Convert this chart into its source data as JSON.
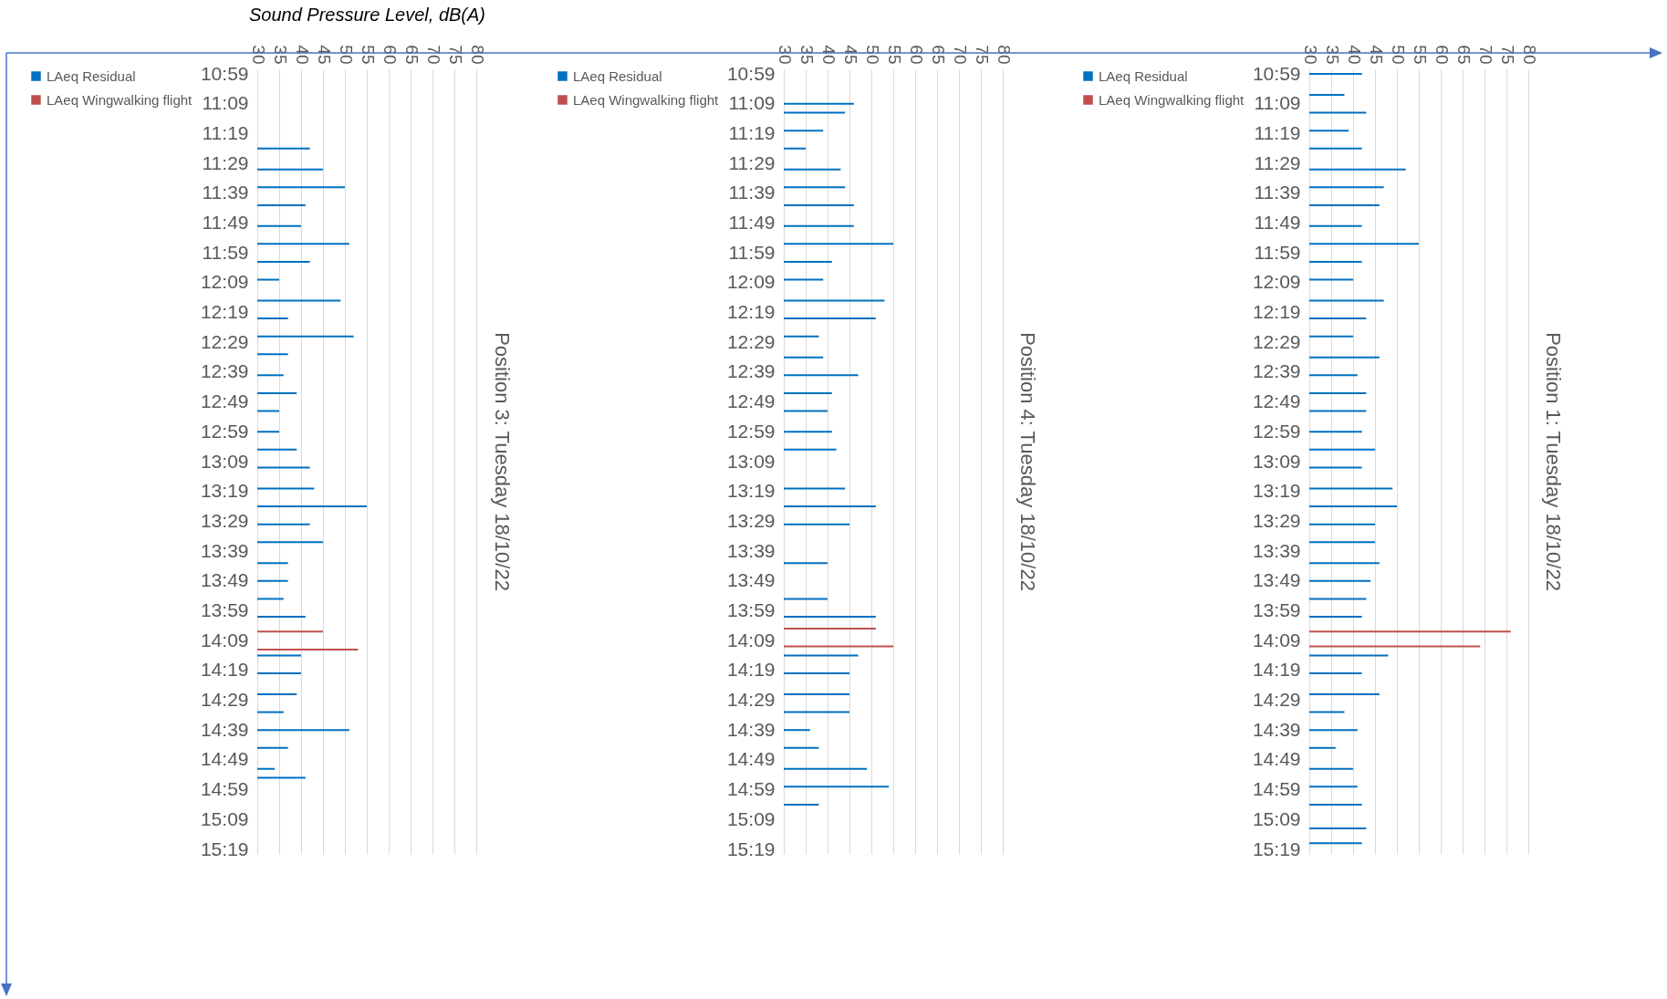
{
  "chart_data": [
    {
      "type": "bar",
      "orientation": "horizontal",
      "title": "Position 3: Tuesday 18/10/22",
      "xlabel": "Sound Pressure Level, dB(A)",
      "xlim": [
        30,
        80
      ],
      "xticks": [
        30,
        35,
        40,
        45,
        50,
        55,
        60,
        65,
        70,
        75,
        80
      ],
      "ylim": [
        15.317,
        10.983
      ],
      "yticks": [
        {
          "value": 10.983,
          "label": "10:59"
        },
        {
          "value": 11.15,
          "label": "11:09"
        },
        {
          "value": 11.317,
          "label": "11:19"
        },
        {
          "value": 11.483,
          "label": "11:29"
        },
        {
          "value": 11.65,
          "label": "11:39"
        },
        {
          "value": 11.817,
          "label": "11:49"
        },
        {
          "value": 11.983,
          "label": "11:59"
        },
        {
          "value": 12.15,
          "label": "12:09"
        },
        {
          "value": 12.317,
          "label": "12:19"
        },
        {
          "value": 12.483,
          "label": "12:29"
        },
        {
          "value": 12.65,
          "label": "12:39"
        },
        {
          "value": 12.817,
          "label": "12:49"
        },
        {
          "value": 12.983,
          "label": "12:59"
        },
        {
          "value": 13.15,
          "label": "13:09"
        },
        {
          "value": 13.317,
          "label": "13:19"
        },
        {
          "value": 13.483,
          "label": "13:29"
        },
        {
          "value": 13.65,
          "label": "13:39"
        },
        {
          "value": 13.817,
          "label": "13:49"
        },
        {
          "value": 13.983,
          "label": "13:59"
        },
        {
          "value": 14.15,
          "label": "14:09"
        },
        {
          "value": 14.317,
          "label": "14:19"
        },
        {
          "value": 14.483,
          "label": "14:29"
        },
        {
          "value": 14.65,
          "label": "14:39"
        },
        {
          "value": 14.817,
          "label": "14:49"
        },
        {
          "value": 14.983,
          "label": "14:59"
        },
        {
          "value": 15.15,
          "label": "15:09"
        },
        {
          "value": 15.317,
          "label": "15:19"
        }
      ],
      "grid": "x",
      "legend": "left",
      "series": [
        {
          "name": "LAeq Residual",
          "color": "#0070c0",
          "x": [
            11.4,
            11.517,
            11.617,
            11.717,
            11.833,
            11.933,
            12.033,
            12.133,
            12.25,
            12.35,
            12.45,
            12.55,
            12.667,
            12.767,
            12.867,
            12.983,
            13.083,
            13.183,
            13.3,
            13.4,
            13.5,
            13.6,
            13.717,
            13.817,
            13.917,
            14.017,
            14.233,
            14.333,
            14.45,
            14.55,
            14.65,
            14.75,
            14.867,
            14.917
          ],
          "values": [
            42,
            45,
            50,
            41,
            40,
            51,
            42,
            35,
            49,
            37,
            52,
            37,
            36,
            39,
            35,
            35,
            39,
            42,
            43,
            55,
            42,
            45,
            37,
            37,
            36,
            41,
            40,
            40,
            39,
            36,
            51,
            37,
            34,
            41
          ]
        },
        {
          "name": "LAeq Wingwalking flight",
          "color": "#c0504d",
          "x": [
            14.1,
            14.2
          ],
          "values": [
            45,
            53
          ]
        }
      ]
    },
    {
      "type": "bar",
      "orientation": "horizontal",
      "title": "Position 4: Tuesday 18/10/22",
      "xlim": [
        30,
        80
      ],
      "xticks": [
        30,
        35,
        40,
        45,
        50,
        55,
        60,
        65,
        70,
        75,
        80
      ],
      "ylim": [
        15.317,
        10.983
      ],
      "yticks": [
        {
          "value": 10.983,
          "label": "10:59"
        },
        {
          "value": 11.15,
          "label": "11:09"
        },
        {
          "value": 11.317,
          "label": "11:19"
        },
        {
          "value": 11.483,
          "label": "11:29"
        },
        {
          "value": 11.65,
          "label": "11:39"
        },
        {
          "value": 11.817,
          "label": "11:49"
        },
        {
          "value": 11.983,
          "label": "11:59"
        },
        {
          "value": 12.15,
          "label": "12:09"
        },
        {
          "value": 12.317,
          "label": "12:19"
        },
        {
          "value": 12.483,
          "label": "12:29"
        },
        {
          "value": 12.65,
          "label": "12:39"
        },
        {
          "value": 12.817,
          "label": "12:49"
        },
        {
          "value": 12.983,
          "label": "12:59"
        },
        {
          "value": 13.15,
          "label": "13:09"
        },
        {
          "value": 13.317,
          "label": "13:19"
        },
        {
          "value": 13.483,
          "label": "13:29"
        },
        {
          "value": 13.65,
          "label": "13:39"
        },
        {
          "value": 13.817,
          "label": "13:49"
        },
        {
          "value": 13.983,
          "label": "13:59"
        },
        {
          "value": 14.15,
          "label": "14:09"
        },
        {
          "value": 14.317,
          "label": "14:19"
        },
        {
          "value": 14.483,
          "label": "14:29"
        },
        {
          "value": 14.65,
          "label": "14:39"
        },
        {
          "value": 14.817,
          "label": "14:49"
        },
        {
          "value": 14.983,
          "label": "14:59"
        },
        {
          "value": 15.15,
          "label": "15:09"
        },
        {
          "value": 15.317,
          "label": "15:19"
        }
      ],
      "grid": "x",
      "legend": "left",
      "series": [
        {
          "name": "LAeq Residual",
          "color": "#0070c0",
          "x": [
            11.15,
            11.2,
            11.3,
            11.4,
            11.517,
            11.617,
            11.717,
            11.833,
            11.933,
            12.033,
            12.133,
            12.25,
            12.35,
            12.45,
            12.567,
            12.667,
            12.767,
            12.867,
            12.983,
            13.083,
            13.3,
            13.4,
            13.5,
            13.717,
            13.917,
            14.017,
            14.233,
            14.333,
            14.45,
            14.55,
            14.65,
            14.75,
            14.867,
            14.967,
            15.067
          ],
          "values": [
            46,
            44,
            39,
            35,
            43,
            44,
            46,
            46,
            55,
            41,
            39,
            53,
            51,
            38,
            39,
            47,
            41,
            40,
            41,
            42,
            44,
            51,
            45,
            40,
            40,
            51,
            47,
            45,
            45,
            45,
            36,
            38,
            49,
            54,
            38
          ]
        },
        {
          "name": "LAeq Wingwalking flight",
          "color": "#c0504d",
          "x": [
            14.083,
            14.183
          ],
          "values": [
            51,
            55
          ]
        }
      ]
    },
    {
      "type": "bar",
      "orientation": "horizontal",
      "title": "Position 1: Tuesday 18/10/22",
      "xlim": [
        30,
        80
      ],
      "xticks": [
        30,
        35,
        40,
        45,
        50,
        55,
        60,
        65,
        70,
        75,
        80
      ],
      "ylim": [
        15.317,
        10.983
      ],
      "yticks": [
        {
          "value": 10.983,
          "label": "10:59"
        },
        {
          "value": 11.15,
          "label": "11:09"
        },
        {
          "value": 11.317,
          "label": "11:19"
        },
        {
          "value": 11.483,
          "label": "11:29"
        },
        {
          "value": 11.65,
          "label": "11:39"
        },
        {
          "value": 11.817,
          "label": "11:49"
        },
        {
          "value": 11.983,
          "label": "11:59"
        },
        {
          "value": 12.15,
          "label": "12:09"
        },
        {
          "value": 12.317,
          "label": "12:19"
        },
        {
          "value": 12.483,
          "label": "12:29"
        },
        {
          "value": 12.65,
          "label": "12:39"
        },
        {
          "value": 12.817,
          "label": "12:49"
        },
        {
          "value": 12.983,
          "label": "12:59"
        },
        {
          "value": 13.15,
          "label": "13:09"
        },
        {
          "value": 13.317,
          "label": "13:19"
        },
        {
          "value": 13.483,
          "label": "13:29"
        },
        {
          "value": 13.65,
          "label": "13:39"
        },
        {
          "value": 13.817,
          "label": "13:49"
        },
        {
          "value": 13.983,
          "label": "13:59"
        },
        {
          "value": 14.15,
          "label": "14:09"
        },
        {
          "value": 14.317,
          "label": "14:19"
        },
        {
          "value": 14.483,
          "label": "14:29"
        },
        {
          "value": 14.65,
          "label": "14:39"
        },
        {
          "value": 14.817,
          "label": "14:49"
        },
        {
          "value": 14.983,
          "label": "14:59"
        },
        {
          "value": 15.15,
          "label": "15:09"
        },
        {
          "value": 15.317,
          "label": "15:19"
        }
      ],
      "grid": "x",
      "legend": "left",
      "series": [
        {
          "name": "LAeq Residual",
          "color": "#0070c0",
          "x": [
            10.983,
            11.1,
            11.2,
            11.3,
            11.4,
            11.517,
            11.617,
            11.717,
            11.833,
            11.933,
            12.033,
            12.133,
            12.25,
            12.35,
            12.45,
            12.567,
            12.667,
            12.767,
            12.867,
            12.983,
            13.083,
            13.183,
            13.3,
            13.4,
            13.5,
            13.6,
            13.717,
            13.817,
            13.917,
            14.017,
            14.233,
            14.333,
            14.45,
            14.55,
            14.65,
            14.75,
            14.867,
            14.967,
            15.067,
            15.2,
            15.283
          ],
          "values": [
            42,
            38,
            43,
            39,
            42,
            52,
            47,
            46,
            42,
            55,
            42,
            40,
            47,
            43,
            40,
            46,
            41,
            43,
            43,
            42,
            45,
            42,
            49,
            50,
            45,
            45,
            46,
            44,
            43,
            42,
            48,
            42,
            46,
            38,
            41,
            36,
            40,
            41,
            42,
            43,
            42
          ]
        },
        {
          "name": "LAeq Wingwalking flight",
          "color": "#c0504d",
          "x": [
            14.1,
            14.183
          ],
          "values": [
            76,
            69
          ]
        }
      ]
    }
  ]
}
